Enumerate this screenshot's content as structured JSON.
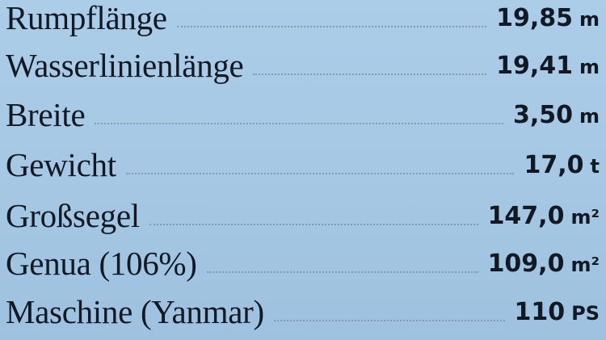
{
  "specs": [
    {
      "label": "Rumpflänge",
      "value": "19,85",
      "unit": "m"
    },
    {
      "label": "Wasserlinienlänge",
      "value": "19,41",
      "unit": "m"
    },
    {
      "label": "Breite",
      "value": "3,50",
      "unit": "m"
    },
    {
      "label": "Gewicht",
      "value": "17,0",
      "unit": "t"
    },
    {
      "label": "Großsegel",
      "value": "147,0",
      "unit": "m²"
    },
    {
      "label": "Genua (106%)",
      "value": "109,0",
      "unit": "m²"
    },
    {
      "label": "Maschine (Yanmar)",
      "value": "110",
      "unit": "PS"
    }
  ],
  "colors": {
    "background": "#a9cbe6",
    "text": "#111a24"
  }
}
